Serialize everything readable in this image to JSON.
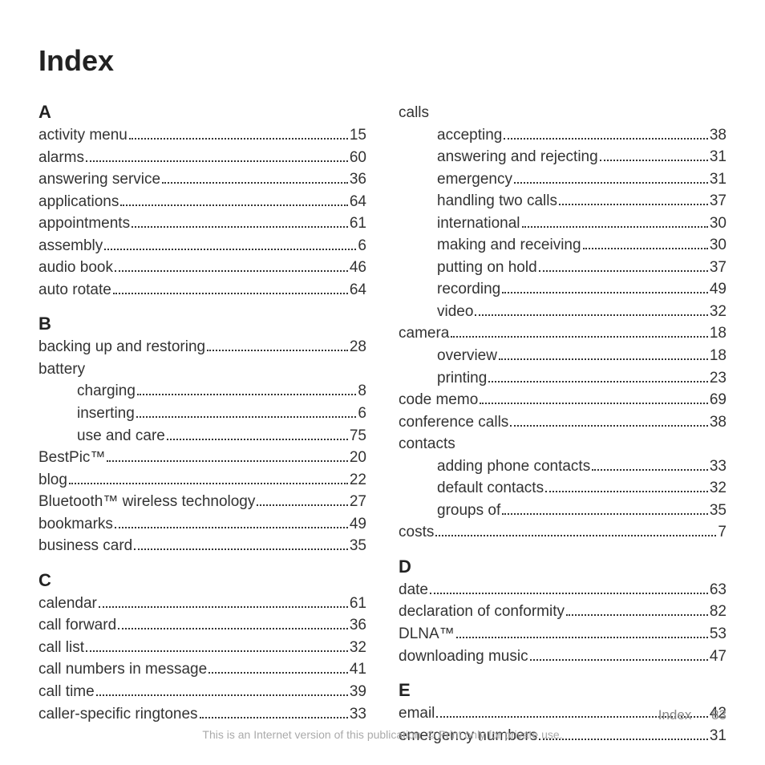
{
  "title": "Index",
  "footer": {
    "label": "Index",
    "page": "83",
    "notice": "This is an Internet version of this publication. © Print only for private use."
  },
  "columns": [
    [
      {
        "type": "letter",
        "text": "A"
      },
      {
        "type": "entry",
        "label": "activity menu",
        "page": "15"
      },
      {
        "type": "entry",
        "label": "alarms",
        "page": "60"
      },
      {
        "type": "entry",
        "label": "answering service",
        "page": "36"
      },
      {
        "type": "entry",
        "label": "applications",
        "page": "64"
      },
      {
        "type": "entry",
        "label": "appointments",
        "page": "61"
      },
      {
        "type": "entry",
        "label": "assembly",
        "page": "6"
      },
      {
        "type": "entry",
        "label": "audio book",
        "page": "46"
      },
      {
        "type": "entry",
        "label": "auto rotate",
        "page": "64"
      },
      {
        "type": "letter",
        "text": "B"
      },
      {
        "type": "entry",
        "label": "backing up and restoring",
        "page": "28"
      },
      {
        "type": "entry",
        "label": "battery",
        "nopage": true
      },
      {
        "type": "entry",
        "label": "charging",
        "page": "8",
        "sub": true
      },
      {
        "type": "entry",
        "label": "inserting",
        "page": "6",
        "sub": true
      },
      {
        "type": "entry",
        "label": "use and care",
        "page": "75",
        "sub": true
      },
      {
        "type": "entry",
        "label": "BestPic™",
        "page": "20"
      },
      {
        "type": "entry",
        "label": "blog",
        "page": "22"
      },
      {
        "type": "entry",
        "label": "Bluetooth™ wireless technology",
        "page": "27"
      },
      {
        "type": "entry",
        "label": "bookmarks",
        "page": "49"
      },
      {
        "type": "entry",
        "label": "business card",
        "page": "35"
      },
      {
        "type": "letter",
        "text": "C"
      },
      {
        "type": "entry",
        "label": "calendar",
        "page": "61"
      },
      {
        "type": "entry",
        "label": "call forward",
        "page": "36"
      },
      {
        "type": "entry",
        "label": "call list",
        "page": "32"
      },
      {
        "type": "entry",
        "label": "call numbers in message",
        "page": "41"
      },
      {
        "type": "entry",
        "label": "call time",
        "page": "39"
      },
      {
        "type": "entry",
        "label": "caller-specific ringtones",
        "page": "33"
      }
    ],
    [
      {
        "type": "entry",
        "label": "calls",
        "nopage": true
      },
      {
        "type": "entry",
        "label": "accepting",
        "page": "38",
        "sub": true
      },
      {
        "type": "entry",
        "label": "answering and rejecting",
        "page": "31",
        "sub": true
      },
      {
        "type": "entry",
        "label": "emergency",
        "page": "31",
        "sub": true
      },
      {
        "type": "entry",
        "label": "handling two calls",
        "page": "37",
        "sub": true
      },
      {
        "type": "entry",
        "label": "international",
        "page": "30",
        "sub": true
      },
      {
        "type": "entry",
        "label": "making and receiving",
        "page": "30",
        "sub": true
      },
      {
        "type": "entry",
        "label": "putting on hold",
        "page": "37",
        "sub": true
      },
      {
        "type": "entry",
        "label": "recording",
        "page": "49",
        "sub": true
      },
      {
        "type": "entry",
        "label": "video",
        "page": "32",
        "sub": true
      },
      {
        "type": "entry",
        "label": "camera",
        "page": "18"
      },
      {
        "type": "entry",
        "label": "overview",
        "page": "18",
        "sub": true
      },
      {
        "type": "entry",
        "label": "printing",
        "page": "23",
        "sub": true
      },
      {
        "type": "entry",
        "label": "code memo",
        "page": "69"
      },
      {
        "type": "entry",
        "label": "conference calls",
        "page": "38"
      },
      {
        "type": "entry",
        "label": "contacts",
        "nopage": true
      },
      {
        "type": "entry",
        "label": "adding phone contacts",
        "page": "33",
        "sub": true
      },
      {
        "type": "entry",
        "label": "default contacts",
        "page": "32",
        "sub": true
      },
      {
        "type": "entry",
        "label": "groups of",
        "page": "35",
        "sub": true
      },
      {
        "type": "entry",
        "label": "costs",
        "page": "7"
      },
      {
        "type": "letter",
        "text": "D"
      },
      {
        "type": "entry",
        "label": "date",
        "page": "63"
      },
      {
        "type": "entry",
        "label": "declaration of conformity",
        "page": "82"
      },
      {
        "type": "entry",
        "label": "DLNA™",
        "page": "53"
      },
      {
        "type": "entry",
        "label": "downloading music",
        "page": "47"
      },
      {
        "type": "letter",
        "text": "E"
      },
      {
        "type": "entry",
        "label": "email",
        "page": "42"
      },
      {
        "type": "entry",
        "label": "emergency numbers",
        "page": "31"
      }
    ]
  ]
}
